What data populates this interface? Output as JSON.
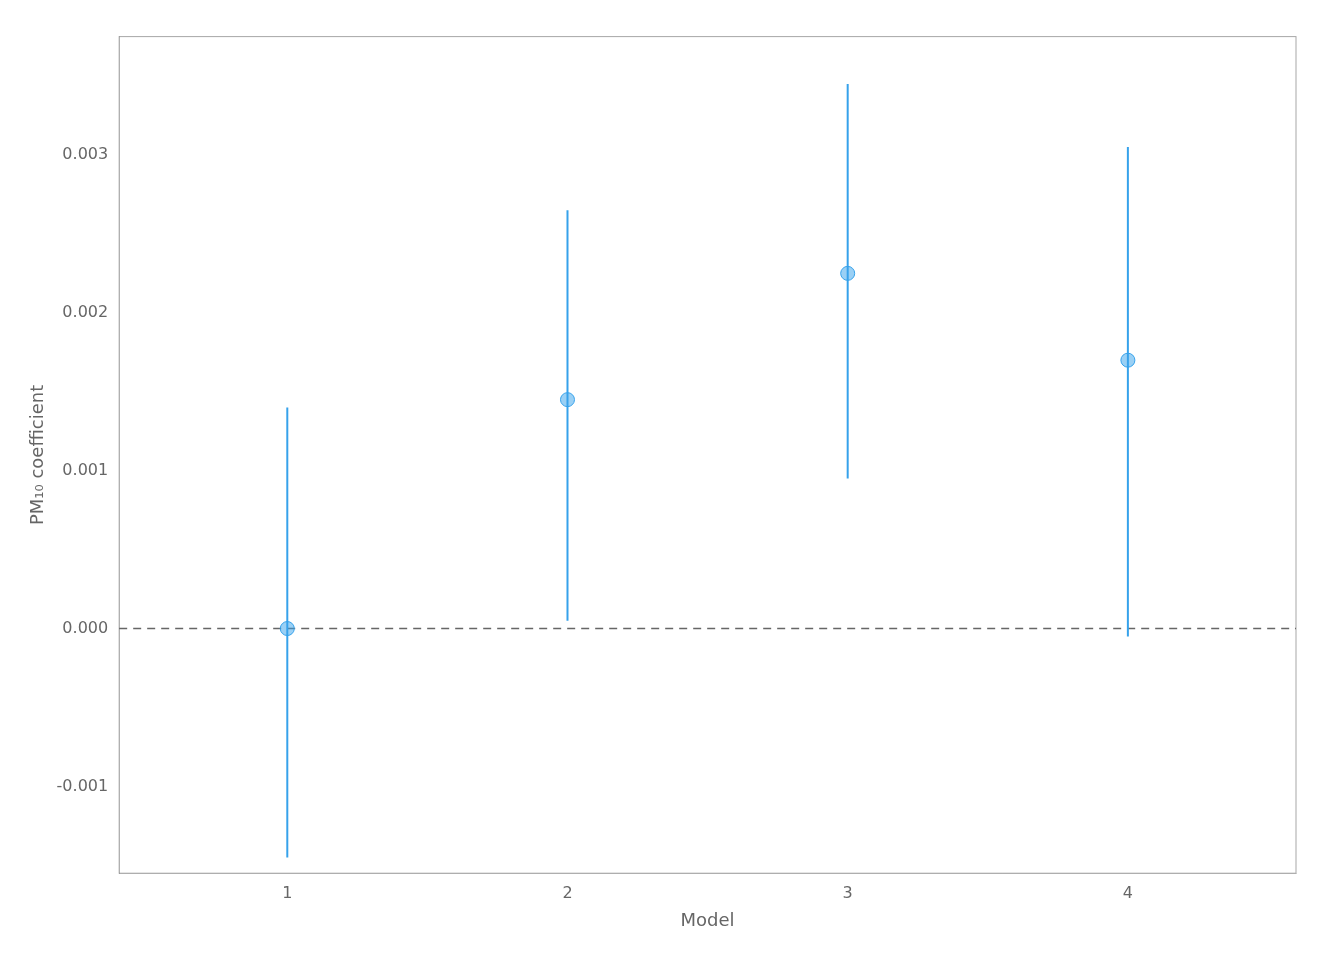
{
  "chart_data": {
    "type": "scatter",
    "xlabel": "Model",
    "ylabel": "PM₁₀ coefficient",
    "x": [
      1,
      2,
      3,
      4
    ],
    "values": [
      0.0,
      0.00145,
      0.00225,
      0.0017
    ],
    "ci_lower": [
      -0.00145,
      5e-05,
      0.00095,
      -5e-05
    ],
    "ci_upper": [
      0.0014,
      0.00265,
      0.00345,
      0.00305
    ],
    "reference_line": {
      "y": 0.0,
      "line_style": "dashed"
    },
    "xlim": [
      0.4,
      4.6
    ],
    "xticks": [
      1,
      2,
      3,
      4
    ],
    "ylim": [
      -0.00155,
      0.00375
    ],
    "yticks": [
      -0.001,
      {
        "value": 0.0,
        "label": "0.000"
      },
      0.001,
      0.002,
      0.003
    ],
    "grid": false
  }
}
